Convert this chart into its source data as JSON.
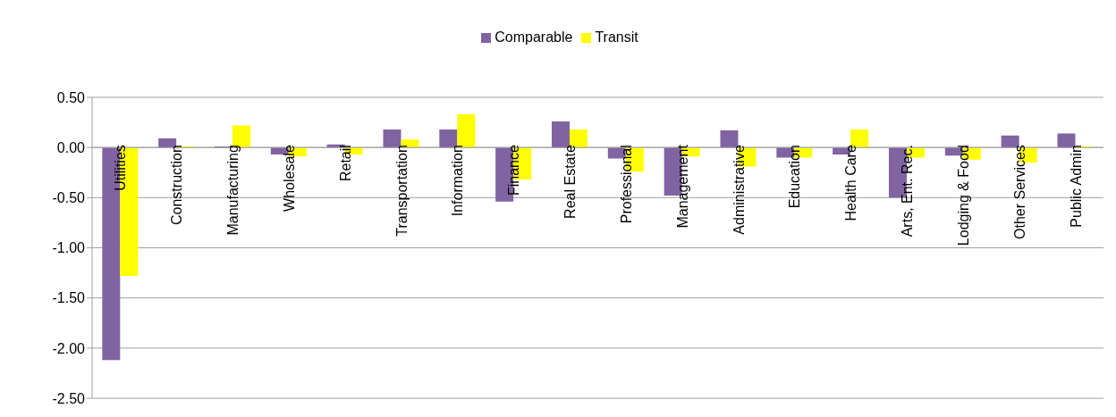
{
  "chart_data": {
    "type": "bar",
    "categories": [
      "Utilities",
      "Construction",
      "Manufacturing",
      "Wholesale",
      "Retail",
      "Transportation",
      "Information",
      "Finance",
      "Real Estate",
      "Professional",
      "Management",
      "Administrative",
      "Education",
      "Health Care",
      "Arts, Ent. Rec.",
      "Lodging & Food",
      "Other Services",
      "Public Admin"
    ],
    "series": [
      {
        "name": "Comparable",
        "color": "#8064a2",
        "values": [
          -2.12,
          0.09,
          0.01,
          -0.07,
          0.03,
          0.18,
          0.18,
          -0.54,
          0.26,
          -0.11,
          -0.48,
          0.17,
          -0.1,
          -0.07,
          -0.5,
          -0.08,
          0.12,
          0.14
        ]
      },
      {
        "name": "Transit",
        "color": "#ffff00",
        "values": [
          -1.28,
          0.01,
          0.22,
          -0.09,
          -0.07,
          0.08,
          0.33,
          -0.32,
          0.18,
          -0.24,
          -0.09,
          -0.19,
          -0.1,
          0.18,
          -0.1,
          -0.12,
          -0.15,
          0.01
        ]
      }
    ],
    "ylim": [
      -2.5,
      0.5
    ],
    "yticks": [
      {
        "value": 0.5,
        "label": "0.50"
      },
      {
        "value": 0,
        "label": "0.00"
      },
      {
        "value": -0.5,
        "label": "-0.50"
      },
      {
        "value": -1,
        "label": "-1.00"
      },
      {
        "value": -1.5,
        "label": "-1.50"
      },
      {
        "value": -2,
        "label": "-2.00"
      },
      {
        "value": -2.5,
        "label": "-2.50"
      }
    ],
    "grid": "y",
    "legend": "top"
  }
}
